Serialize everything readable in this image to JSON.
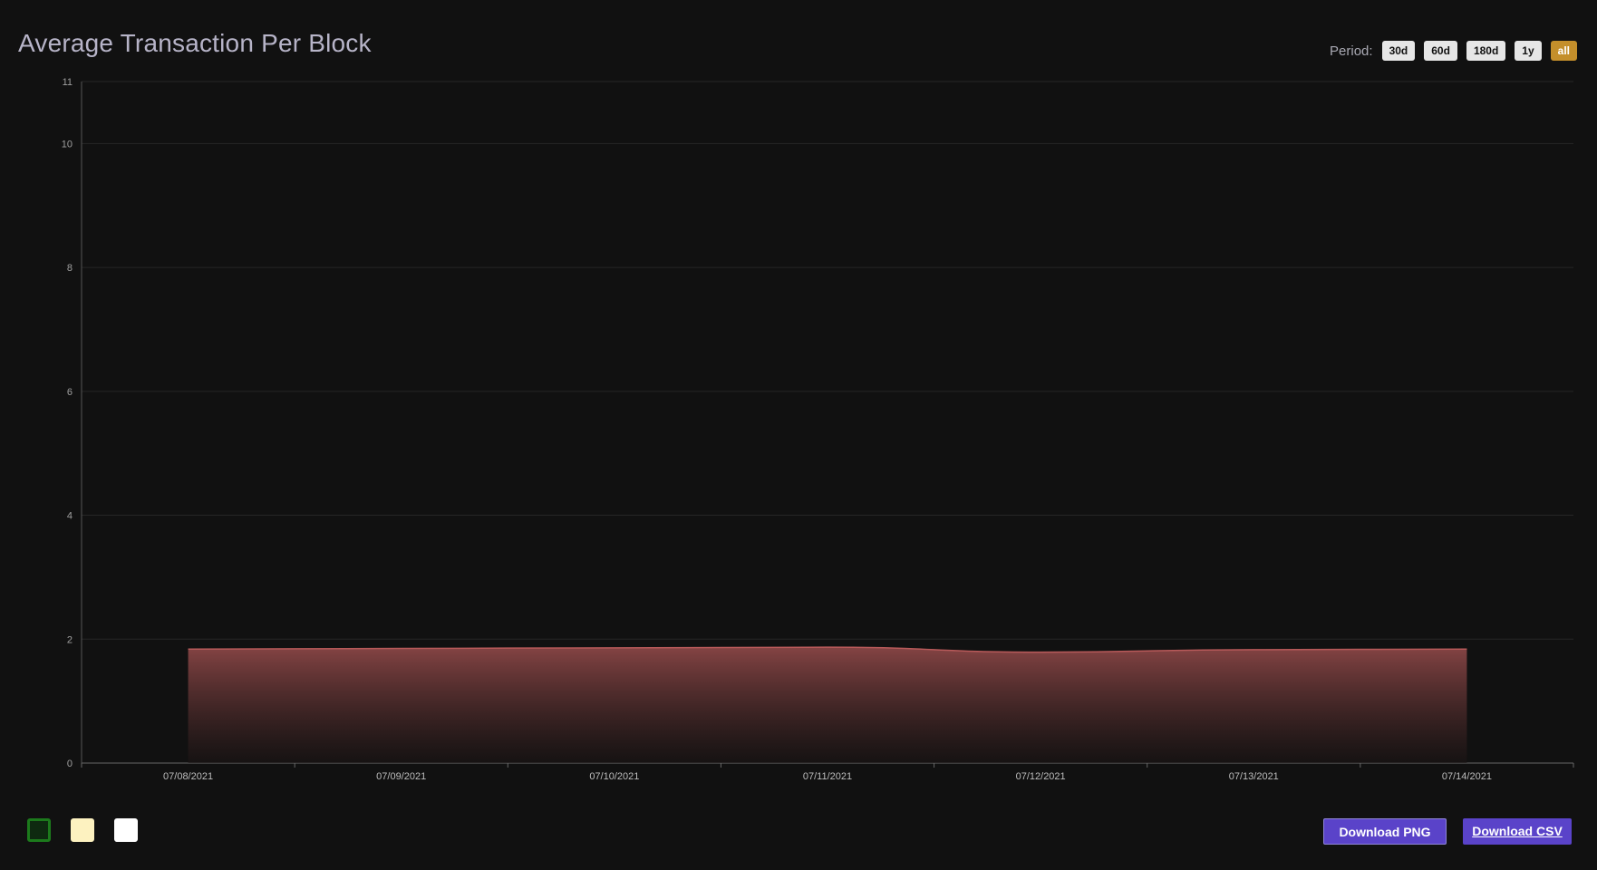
{
  "title": "Average Transaction Per Block",
  "period": {
    "label": "Period:",
    "options": [
      "30d",
      "60d",
      "180d",
      "1y",
      "all"
    ],
    "selected": "all",
    "active_color": "#c48f2b"
  },
  "chart_data": {
    "type": "area",
    "title": "Average Transaction Per Block",
    "xlabel": "",
    "ylabel": "",
    "x": [
      "07/08/2021",
      "07/09/2021",
      "07/10/2021",
      "07/11/2021",
      "07/12/2021",
      "07/13/2021",
      "07/14/2021"
    ],
    "series": [
      {
        "values": [
          1.84,
          1.85,
          1.86,
          1.87,
          1.79,
          1.83,
          1.84
        ]
      }
    ],
    "ylim": [
      0,
      11
    ],
    "yticks": [
      0,
      2,
      4,
      6,
      8,
      10,
      11
    ],
    "grid": true,
    "line_color": "#b85a5a",
    "fill_color": "#8a4646",
    "legend": "none"
  },
  "swatches": [
    {
      "name": "dark-green",
      "color": "#0e2a10",
      "border": "#1c7a1c"
    },
    {
      "name": "cream",
      "color": "#fdf2c0",
      "border": "#fdf2c0"
    },
    {
      "name": "white",
      "color": "#ffffff",
      "border": "#ffffff"
    }
  ],
  "downloads": {
    "png_label": "Download PNG",
    "csv_label": "Download CSV",
    "button_color": "#5a43c9"
  }
}
